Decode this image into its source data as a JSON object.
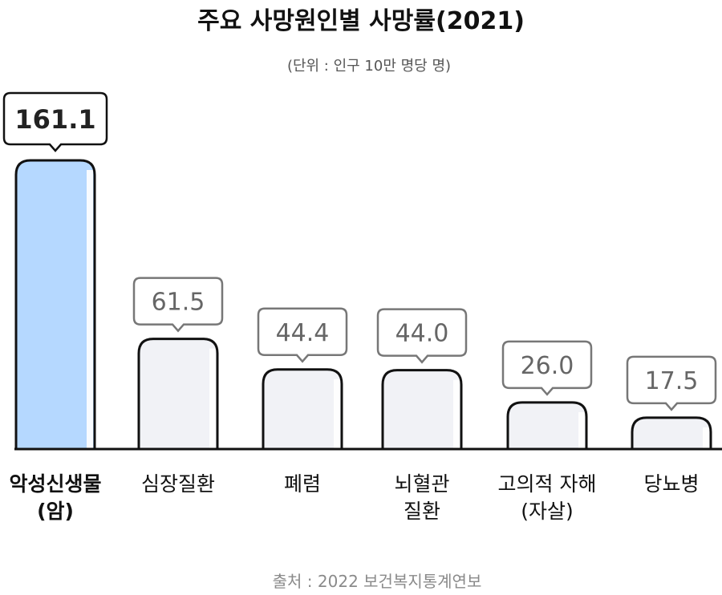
{
  "chart_data": {
    "type": "bar",
    "title": "주요 사망원인별 사망률(2021)",
    "subtitle": "(단위 : 인구 10만 명당 명)",
    "source": "출처 : 2022 보건복지통계연보",
    "categories": [
      [
        "악성신생물",
        "(암)"
      ],
      [
        "심장질환"
      ],
      [
        "폐렴"
      ],
      [
        "뇌혈관",
        "질환"
      ],
      [
        "고의적 자해",
        "(자살)"
      ],
      [
        "당뇨병"
      ]
    ],
    "values": [
      161.1,
      61.5,
      44.4,
      44.0,
      26.0,
      17.5
    ],
    "value_labels": [
      "161.1",
      "61.5",
      "44.4",
      "44.0",
      "26.0",
      "17.5"
    ],
    "highlight_index": 0,
    "colors": {
      "highlight_fill": "#b5d8ff",
      "bar_fill": "#f1f2f6",
      "outline": "#111111",
      "callout_outline_highlight": "#111111",
      "callout_outline": "#777777",
      "value_text_highlight": "#222222",
      "value_text": "#666666",
      "title_text": "#111111",
      "subtitle_text": "#555555",
      "source_text": "#8a8a8a"
    }
  }
}
